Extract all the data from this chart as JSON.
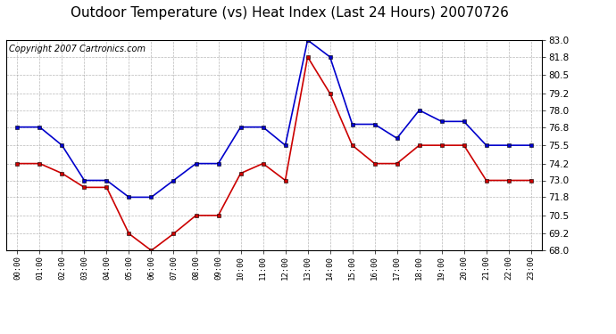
{
  "title": "Outdoor Temperature (vs) Heat Index (Last 24 Hours) 20070726",
  "copyright": "Copyright 2007 Cartronics.com",
  "x_labels": [
    "00:00",
    "01:00",
    "02:00",
    "03:00",
    "04:00",
    "05:00",
    "06:00",
    "07:00",
    "08:00",
    "09:00",
    "10:00",
    "11:00",
    "12:00",
    "13:00",
    "14:00",
    "15:00",
    "16:00",
    "17:00",
    "18:00",
    "19:00",
    "20:00",
    "21:00",
    "22:00",
    "23:00"
  ],
  "blue_values": [
    76.8,
    76.8,
    75.5,
    73.0,
    73.0,
    71.8,
    71.8,
    73.0,
    74.2,
    74.2,
    76.8,
    76.8,
    75.5,
    83.0,
    81.8,
    77.0,
    77.0,
    76.0,
    78.0,
    77.2,
    77.2,
    75.5,
    75.5,
    75.5
  ],
  "red_values": [
    74.2,
    74.2,
    73.5,
    72.5,
    72.5,
    69.2,
    68.0,
    69.2,
    70.5,
    70.5,
    73.5,
    74.2,
    73.0,
    81.8,
    79.2,
    75.5,
    74.2,
    74.2,
    75.5,
    75.5,
    75.5,
    73.0,
    73.0,
    73.0
  ],
  "blue_color": "#0000cc",
  "red_color": "#cc0000",
  "background_color": "#ffffff",
  "grid_color": "#999999",
  "ylim": [
    68.0,
    83.0
  ],
  "yticks": [
    68.0,
    69.2,
    70.5,
    71.8,
    73.0,
    74.2,
    75.5,
    76.8,
    78.0,
    79.2,
    80.5,
    81.8,
    83.0
  ],
  "title_fontsize": 11,
  "copyright_fontsize": 7
}
